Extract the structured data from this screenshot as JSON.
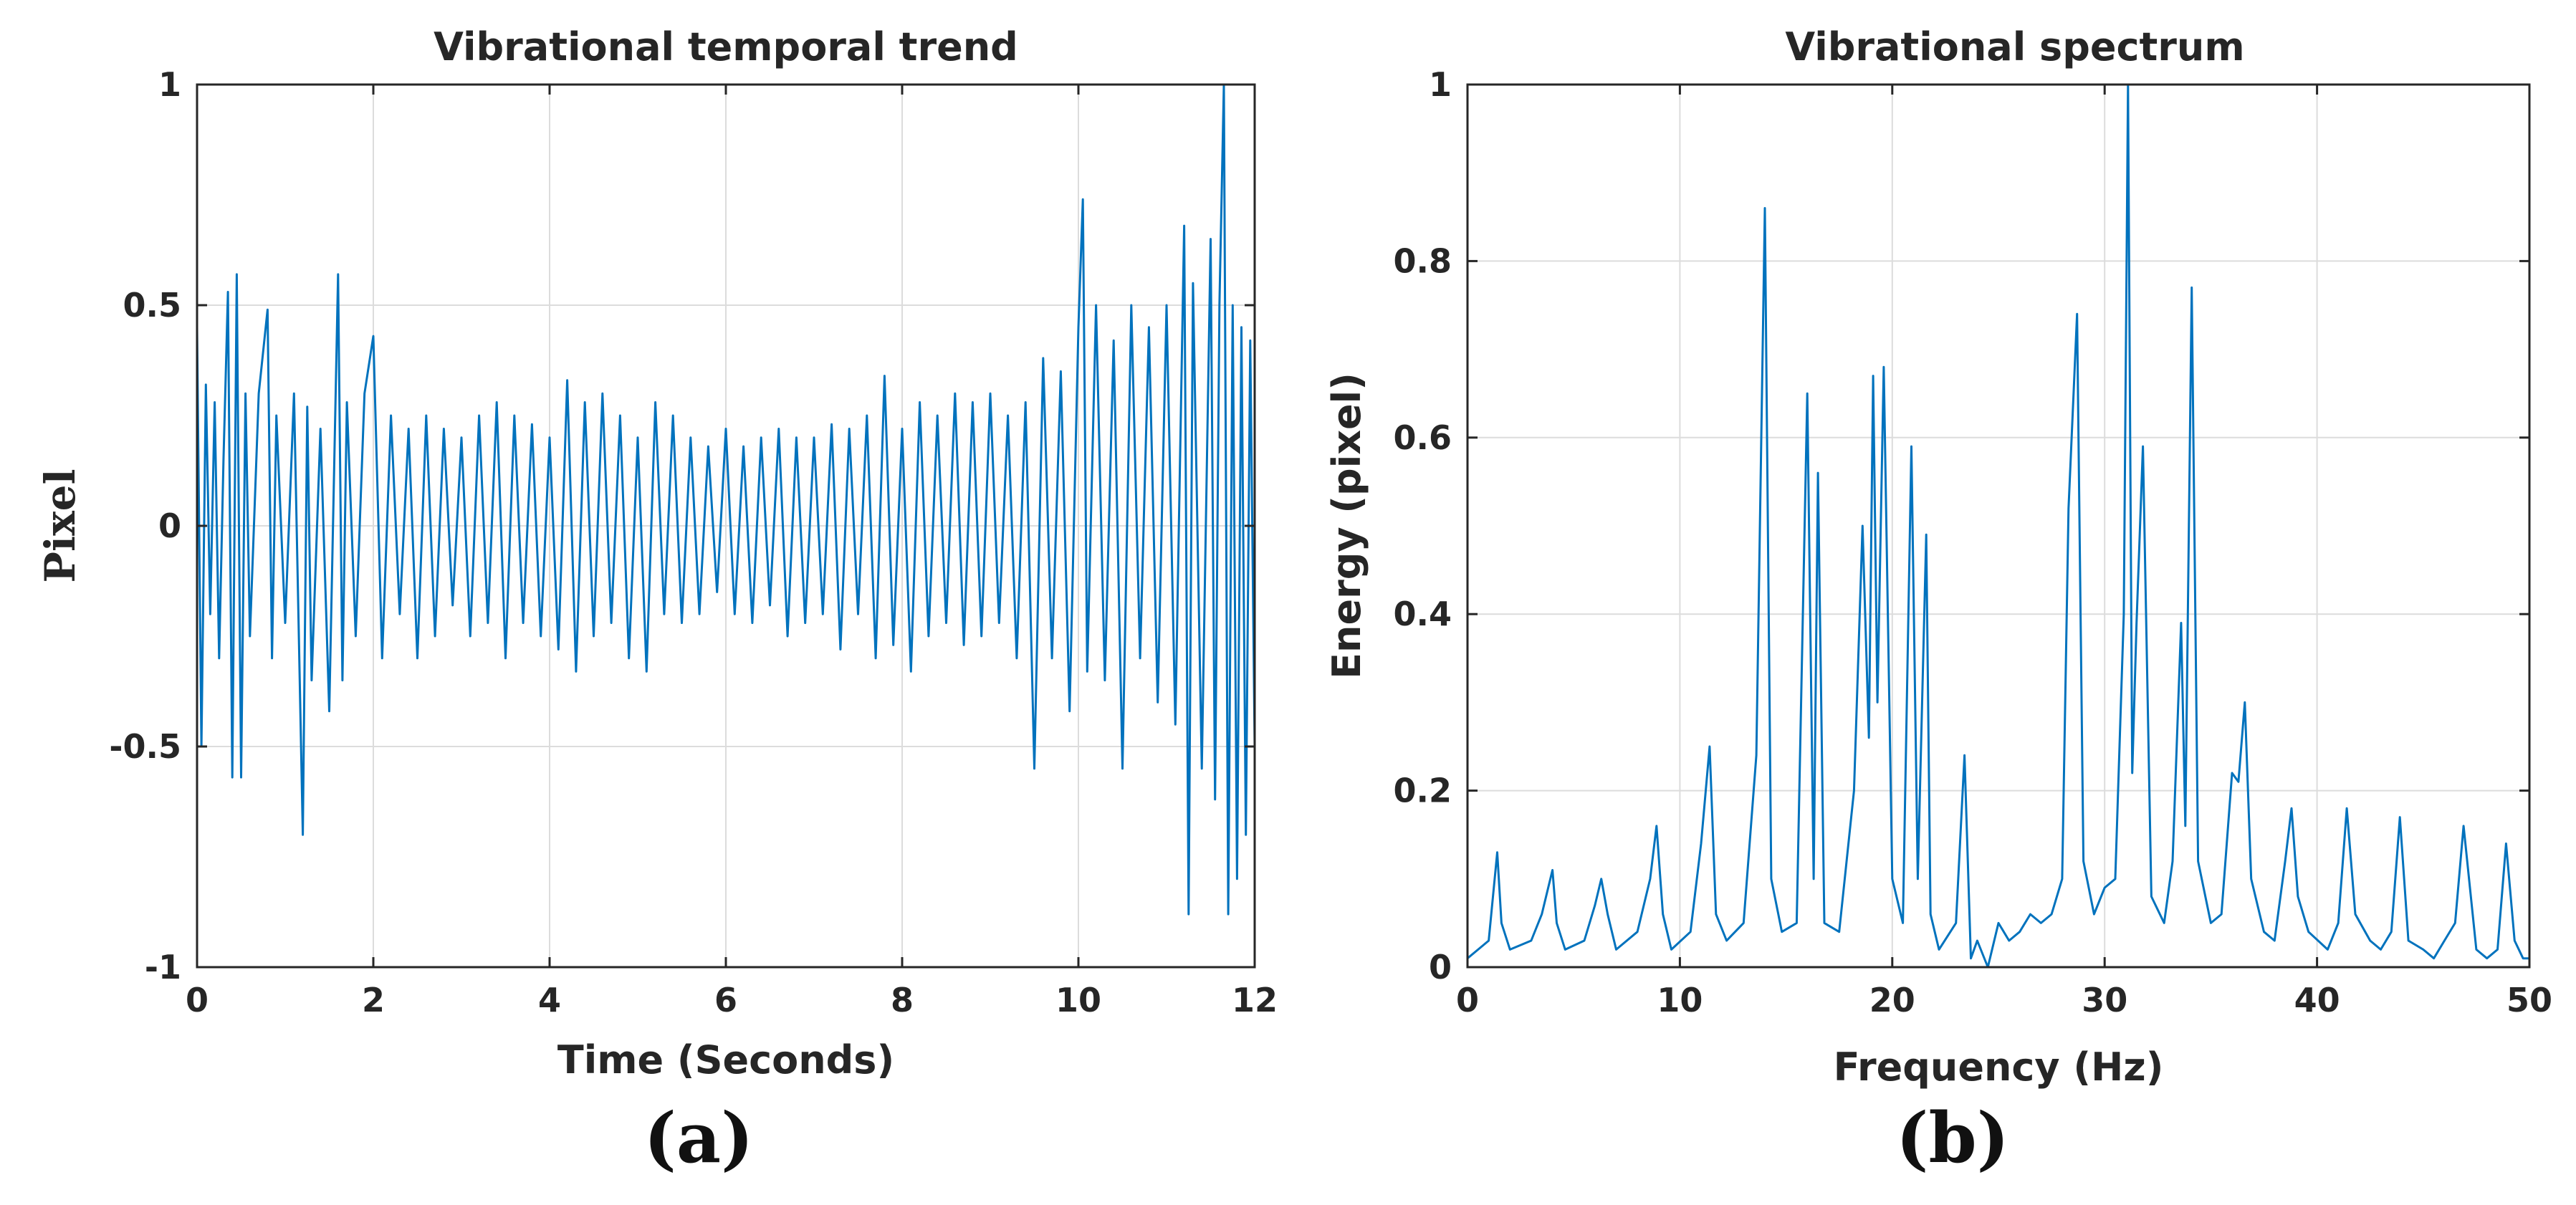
{
  "figure_captions": [
    "(a)",
    "(b)"
  ],
  "chart_data": [
    {
      "type": "line",
      "title": "Vibrational temporal trend",
      "xlabel": "Time (Seconds)",
      "ylabel": "Pixel",
      "xlim": [
        0,
        12
      ],
      "ylim": [
        -1,
        1
      ],
      "xticks": [
        0,
        2,
        4,
        6,
        8,
        10,
        12
      ],
      "xtick_labels": [
        "0",
        "2",
        "4",
        "6",
        "8",
        "10",
        "12"
      ],
      "yticks": [
        -1,
        -0.5,
        0,
        0.5,
        1
      ],
      "ytick_labels": [
        "-1",
        "-0.5",
        "0",
        "0.5",
        "1"
      ],
      "grid": true,
      "series_color": "#0072BD",
      "series": [
        {
          "name": "Pixel",
          "x": [
            0,
            0.05,
            0.1,
            0.15,
            0.2,
            0.25,
            0.3,
            0.35,
            0.4,
            0.45,
            0.5,
            0.55,
            0.6,
            0.7,
            0.8,
            0.85,
            0.9,
            1.0,
            1.1,
            1.2,
            1.25,
            1.3,
            1.4,
            1.5,
            1.6,
            1.65,
            1.7,
            1.8,
            1.9,
            2.0,
            2.1,
            2.2,
            2.3,
            2.4,
            2.5,
            2.6,
            2.7,
            2.8,
            2.9,
            3.0,
            3.1,
            3.2,
            3.3,
            3.4,
            3.5,
            3.6,
            3.7,
            3.8,
            3.9,
            4.0,
            4.1,
            4.2,
            4.3,
            4.4,
            4.5,
            4.6,
            4.7,
            4.8,
            4.9,
            5.0,
            5.1,
            5.2,
            5.3,
            5.4,
            5.5,
            5.6,
            5.7,
            5.8,
            5.9,
            6.0,
            6.1,
            6.2,
            6.3,
            6.4,
            6.5,
            6.6,
            6.7,
            6.8,
            6.9,
            7.0,
            7.1,
            7.2,
            7.3,
            7.4,
            7.5,
            7.6,
            7.7,
            7.8,
            7.9,
            8.0,
            8.1,
            8.2,
            8.3,
            8.4,
            8.5,
            8.6,
            8.7,
            8.8,
            8.9,
            9.0,
            9.1,
            9.2,
            9.3,
            9.4,
            9.5,
            9.6,
            9.7,
            9.8,
            9.9,
            10.0,
            10.05,
            10.1,
            10.2,
            10.3,
            10.4,
            10.5,
            10.6,
            10.7,
            10.8,
            10.9,
            11.0,
            11.1,
            11.2,
            11.25,
            11.3,
            11.4,
            11.5,
            11.55,
            11.6,
            11.65,
            11.7,
            11.75,
            11.8,
            11.85,
            11.9,
            11.95,
            12.0
          ],
          "values": [
            0.45,
            -0.5,
            0.32,
            -0.2,
            0.28,
            -0.3,
            0.15,
            0.53,
            -0.57,
            0.57,
            -0.57,
            0.3,
            -0.25,
            0.3,
            0.49,
            -0.3,
            0.25,
            -0.22,
            0.3,
            -0.7,
            0.27,
            -0.35,
            0.22,
            -0.42,
            0.57,
            -0.35,
            0.28,
            -0.25,
            0.3,
            0.43,
            -0.3,
            0.25,
            -0.2,
            0.22,
            -0.3,
            0.25,
            -0.25,
            0.22,
            -0.18,
            0.2,
            -0.25,
            0.25,
            -0.22,
            0.28,
            -0.3,
            0.25,
            -0.22,
            0.23,
            -0.25,
            0.2,
            -0.28,
            0.33,
            -0.33,
            0.28,
            -0.25,
            0.3,
            -0.22,
            0.25,
            -0.3,
            0.2,
            -0.33,
            0.28,
            -0.2,
            0.25,
            -0.22,
            0.2,
            -0.2,
            0.18,
            -0.15,
            0.22,
            -0.2,
            0.18,
            -0.22,
            0.2,
            -0.18,
            0.22,
            -0.25,
            0.2,
            -0.22,
            0.2,
            -0.2,
            0.23,
            -0.28,
            0.22,
            -0.2,
            0.25,
            -0.3,
            0.34,
            -0.27,
            0.22,
            -0.33,
            0.28,
            -0.25,
            0.25,
            -0.22,
            0.3,
            -0.27,
            0.28,
            -0.25,
            0.3,
            -0.22,
            0.25,
            -0.3,
            0.28,
            -0.55,
            0.38,
            -0.3,
            0.35,
            -0.42,
            0.45,
            0.74,
            -0.33,
            0.5,
            -0.35,
            0.42,
            -0.55,
            0.5,
            -0.3,
            0.45,
            -0.4,
            0.5,
            -0.45,
            0.68,
            -0.88,
            0.55,
            -0.55,
            0.65,
            -0.62,
            0.5,
            1.0,
            -0.88,
            0.5,
            -0.8,
            0.45,
            -0.7,
            0.42,
            -0.5
          ]
        }
      ]
    },
    {
      "type": "line",
      "title": "Vibrational spectrum",
      "xlabel": "Frequency (Hz)",
      "ylabel": "Energy (pixel)",
      "xlim": [
        0,
        50
      ],
      "ylim": [
        0,
        1
      ],
      "xticks": [
        0,
        10,
        20,
        30,
        40,
        50
      ],
      "xtick_labels": [
        "0",
        "10",
        "20",
        "30",
        "40",
        "50"
      ],
      "yticks": [
        0,
        0.2,
        0.4,
        0.6,
        0.8,
        1
      ],
      "ytick_labels": [
        "0",
        "0.2",
        "0.4",
        "0.6",
        "0.8",
        "1"
      ],
      "grid": true,
      "series_color": "#0072BD",
      "series": [
        {
          "name": "Energy",
          "x": [
            0,
            0.5,
            1.0,
            1.4,
            1.6,
            2.0,
            3.0,
            3.5,
            4.0,
            4.2,
            4.6,
            5.5,
            6.0,
            6.3,
            6.6,
            7.0,
            8.0,
            8.6,
            8.9,
            9.2,
            9.6,
            10.5,
            11.0,
            11.4,
            11.7,
            12.2,
            13.0,
            13.6,
            14.0,
            14.3,
            14.8,
            15.5,
            16.0,
            16.3,
            16.5,
            16.8,
            17.5,
            18.2,
            18.6,
            18.9,
            19.1,
            19.3,
            19.6,
            20.0,
            20.5,
            20.9,
            21.2,
            21.6,
            21.8,
            22.2,
            23.0,
            23.4,
            23.7,
            24.0,
            24.5,
            25.0,
            25.5,
            26.0,
            26.5,
            27.0,
            27.5,
            28.0,
            28.3,
            28.7,
            29.0,
            29.5,
            30.0,
            30.5,
            30.9,
            31.1,
            31.3,
            31.5,
            31.8,
            32.2,
            32.8,
            33.2,
            33.6,
            33.8,
            34.1,
            34.4,
            35.0,
            35.5,
            36.0,
            36.3,
            36.6,
            36.9,
            37.5,
            38.0,
            38.5,
            38.8,
            39.1,
            39.6,
            40.5,
            41.0,
            41.4,
            41.8,
            42.5,
            43.0,
            43.5,
            43.9,
            44.3,
            45.0,
            45.5,
            46.0,
            46.5,
            46.9,
            47.5,
            48.0,
            48.5,
            48.9,
            49.3,
            49.7,
            50.0
          ],
          "values": [
            0.01,
            0.02,
            0.03,
            0.13,
            0.05,
            0.02,
            0.03,
            0.06,
            0.11,
            0.05,
            0.02,
            0.03,
            0.07,
            0.1,
            0.06,
            0.02,
            0.04,
            0.1,
            0.16,
            0.06,
            0.02,
            0.04,
            0.14,
            0.25,
            0.06,
            0.03,
            0.05,
            0.24,
            0.86,
            0.1,
            0.04,
            0.05,
            0.65,
            0.1,
            0.56,
            0.05,
            0.04,
            0.2,
            0.5,
            0.26,
            0.67,
            0.3,
            0.68,
            0.1,
            0.05,
            0.59,
            0.1,
            0.49,
            0.06,
            0.02,
            0.05,
            0.24,
            0.01,
            0.03,
            0.0,
            0.05,
            0.03,
            0.04,
            0.06,
            0.05,
            0.06,
            0.1,
            0.52,
            0.74,
            0.12,
            0.06,
            0.09,
            0.1,
            0.4,
            1.0,
            0.22,
            0.39,
            0.59,
            0.08,
            0.05,
            0.12,
            0.39,
            0.16,
            0.77,
            0.12,
            0.05,
            0.06,
            0.22,
            0.21,
            0.3,
            0.1,
            0.04,
            0.03,
            0.12,
            0.18,
            0.08,
            0.04,
            0.02,
            0.05,
            0.18,
            0.06,
            0.03,
            0.02,
            0.04,
            0.17,
            0.03,
            0.02,
            0.01,
            0.03,
            0.05,
            0.16,
            0.02,
            0.01,
            0.02,
            0.14,
            0.03,
            0.01,
            0.01
          ]
        }
      ]
    }
  ]
}
